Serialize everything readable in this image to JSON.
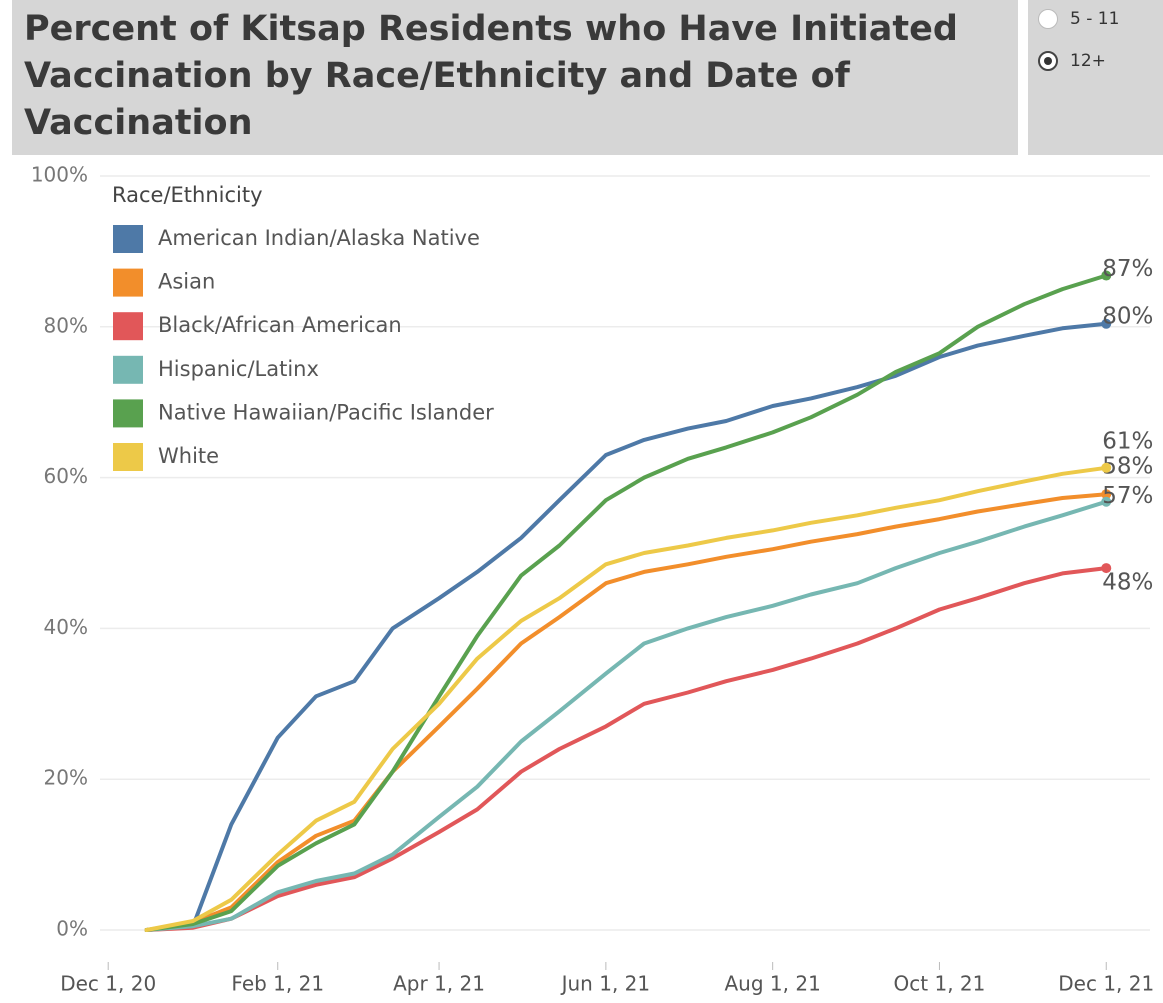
{
  "chart_data": {
    "type": "line",
    "title": "Percent of Kitsap Residents who Have Initiated Vaccination by Race/Ethnicity and Date of Vaccination",
    "legend_title": "Race/Ethnicity",
    "legend": "top-left",
    "grid": true,
    "x": [
      "2020-12-15",
      "2021-01-01",
      "2021-01-15",
      "2021-02-01",
      "2021-02-15",
      "2021-03-01",
      "2021-03-15",
      "2021-04-01",
      "2021-04-15",
      "2021-05-01",
      "2021-05-15",
      "2021-06-01",
      "2021-06-15",
      "2021-07-01",
      "2021-07-15",
      "2021-08-01",
      "2021-08-15",
      "2021-09-01",
      "2021-09-15",
      "2021-10-01",
      "2021-10-15",
      "2021-11-01",
      "2021-11-15",
      "2021-12-01"
    ],
    "xlim": [
      "2020-11-28",
      "2021-12-17"
    ],
    "xticks": [
      {
        "value": "2020-12-01",
        "label": "Dec 1, 20"
      },
      {
        "value": "2021-02-01",
        "label": "Feb 1, 21"
      },
      {
        "value": "2021-04-01",
        "label": "Apr 1, 21"
      },
      {
        "value": "2021-06-01",
        "label": "Jun 1, 21"
      },
      {
        "value": "2021-08-01",
        "label": "Aug 1, 21"
      },
      {
        "value": "2021-10-01",
        "label": "Oct 1, 21"
      },
      {
        "value": "2021-12-01",
        "label": "Dec 1, 21"
      }
    ],
    "ylim": [
      0,
      100
    ],
    "yticks": [
      {
        "value": 0,
        "label": "0%"
      },
      {
        "value": 20,
        "label": "20%"
      },
      {
        "value": 40,
        "label": "40%"
      },
      {
        "value": 60,
        "label": "60%"
      },
      {
        "value": 80,
        "label": "80%"
      },
      {
        "value": 100,
        "label": "100%"
      }
    ],
    "series": [
      {
        "name": "American Indian/Alaska Native",
        "color": "#4e79a7",
        "values": [
          0,
          0.5,
          14,
          25.5,
          31,
          33,
          40,
          44,
          47.5,
          52,
          57,
          63,
          65,
          66.5,
          67.5,
          69.5,
          70.5,
          72,
          73.5,
          76,
          77.5,
          78.8,
          79.8,
          80.4
        ],
        "value_labels": [
          null,
          null,
          null,
          null,
          null,
          null,
          null,
          null,
          null,
          null,
          null,
          null,
          null,
          null,
          null,
          null,
          null,
          null,
          null,
          null,
          null,
          null,
          null,
          "80%"
        ]
      },
      {
        "name": "Asian",
        "color": "#f28e2b",
        "values": [
          0,
          1,
          3,
          9,
          12.5,
          14.5,
          21,
          27,
          32,
          38,
          41.5,
          46,
          47.5,
          48.5,
          49.5,
          50.5,
          51.5,
          52.5,
          53.5,
          54.5,
          55.5,
          56.5,
          57.3,
          57.8
        ],
        "value_labels": [
          null,
          null,
          null,
          null,
          null,
          null,
          null,
          null,
          null,
          null,
          null,
          null,
          null,
          null,
          null,
          null,
          null,
          null,
          null,
          null,
          null,
          null,
          null,
          "58%"
        ]
      },
      {
        "name": "Black/African American",
        "color": "#e15759",
        "values": [
          0,
          0.3,
          1.5,
          4.5,
          6,
          7,
          9.5,
          13,
          16,
          21,
          24,
          27,
          30,
          31.5,
          33,
          34.5,
          36,
          38,
          40,
          42.5,
          44,
          46,
          47.3,
          48
        ],
        "value_labels": [
          null,
          null,
          null,
          null,
          null,
          null,
          null,
          null,
          null,
          null,
          null,
          null,
          null,
          null,
          null,
          null,
          null,
          null,
          null,
          null,
          null,
          null,
          null,
          "48%"
        ]
      },
      {
        "name": "Hispanic/Latinx",
        "color": "#76b7b2",
        "values": [
          0,
          0.5,
          1.5,
          5,
          6.5,
          7.5,
          10,
          15,
          19,
          25,
          29,
          34,
          38,
          40,
          41.5,
          43,
          44.5,
          46,
          48,
          50,
          51.5,
          53.5,
          55,
          56.8
        ],
        "value_labels": [
          null,
          null,
          null,
          null,
          null,
          null,
          null,
          null,
          null,
          null,
          null,
          null,
          null,
          null,
          null,
          null,
          null,
          null,
          null,
          null,
          null,
          null,
          null,
          "57%"
        ]
      },
      {
        "name": "Native Hawaiian/Pacific Islander",
        "color": "#59a14f",
        "values": [
          0,
          0.8,
          2.5,
          8.5,
          11.5,
          14,
          21,
          31,
          39,
          47,
          51,
          57,
          60,
          62.5,
          64,
          66,
          68,
          71,
          74,
          76.5,
          80,
          83,
          85,
          86.8
        ],
        "value_labels": [
          null,
          null,
          null,
          null,
          null,
          null,
          null,
          null,
          null,
          null,
          null,
          null,
          null,
          null,
          null,
          null,
          null,
          null,
          null,
          null,
          null,
          null,
          null,
          "87%"
        ]
      },
      {
        "name": "White",
        "color": "#edc948",
        "values": [
          0,
          1.2,
          4,
          10,
          14.5,
          17,
          24,
          30,
          36,
          41,
          44,
          48.5,
          50,
          51,
          52,
          53,
          54,
          55,
          56,
          57,
          58.2,
          59.5,
          60.5,
          61.3
        ],
        "value_labels": [
          null,
          null,
          null,
          null,
          null,
          null,
          null,
          null,
          null,
          null,
          null,
          null,
          null,
          null,
          null,
          null,
          null,
          null,
          null,
          null,
          null,
          null,
          null,
          "61%"
        ]
      }
    ]
  },
  "controls": {
    "options": [
      "5 - 11",
      "12+"
    ],
    "selected": 1
  }
}
